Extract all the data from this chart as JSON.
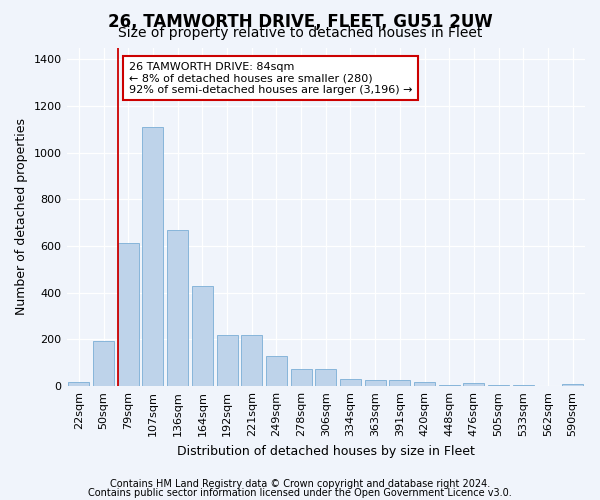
{
  "title": "26, TAMWORTH DRIVE, FLEET, GU51 2UW",
  "subtitle": "Size of property relative to detached houses in Fleet",
  "xlabel": "Distribution of detached houses by size in Fleet",
  "ylabel": "Number of detached properties",
  "categories": [
    "22sqm",
    "50sqm",
    "79sqm",
    "107sqm",
    "136sqm",
    "164sqm",
    "192sqm",
    "221sqm",
    "249sqm",
    "278sqm",
    "306sqm",
    "334sqm",
    "363sqm",
    "391sqm",
    "420sqm",
    "448sqm",
    "476sqm",
    "505sqm",
    "533sqm",
    "562sqm",
    "590sqm"
  ],
  "values": [
    18,
    195,
    615,
    1110,
    670,
    430,
    220,
    220,
    130,
    75,
    75,
    30,
    28,
    28,
    18,
    5,
    12,
    5,
    3,
    2,
    10
  ],
  "bar_color": "#bed3ea",
  "bar_edge_color": "#7aaed6",
  "vline_color": "#cc0000",
  "vline_x_idx": 2,
  "annotation_text": "26 TAMWORTH DRIVE: 84sqm\n← 8% of detached houses are smaller (280)\n92% of semi-detached houses are larger (3,196) →",
  "annotation_box_facecolor": "#ffffff",
  "annotation_box_edgecolor": "#cc0000",
  "footer1": "Contains HM Land Registry data © Crown copyright and database right 2024.",
  "footer2": "Contains public sector information licensed under the Open Government Licence v3.0.",
  "bg_color": "#f0f4fb",
  "plot_bg_color": "#f0f4fb",
  "ylim": [
    0,
    1450
  ],
  "yticks": [
    0,
    200,
    400,
    600,
    800,
    1000,
    1200,
    1400
  ],
  "title_fontsize": 12,
  "subtitle_fontsize": 10,
  "axis_label_fontsize": 9,
  "tick_fontsize": 8,
  "footer_fontsize": 7
}
